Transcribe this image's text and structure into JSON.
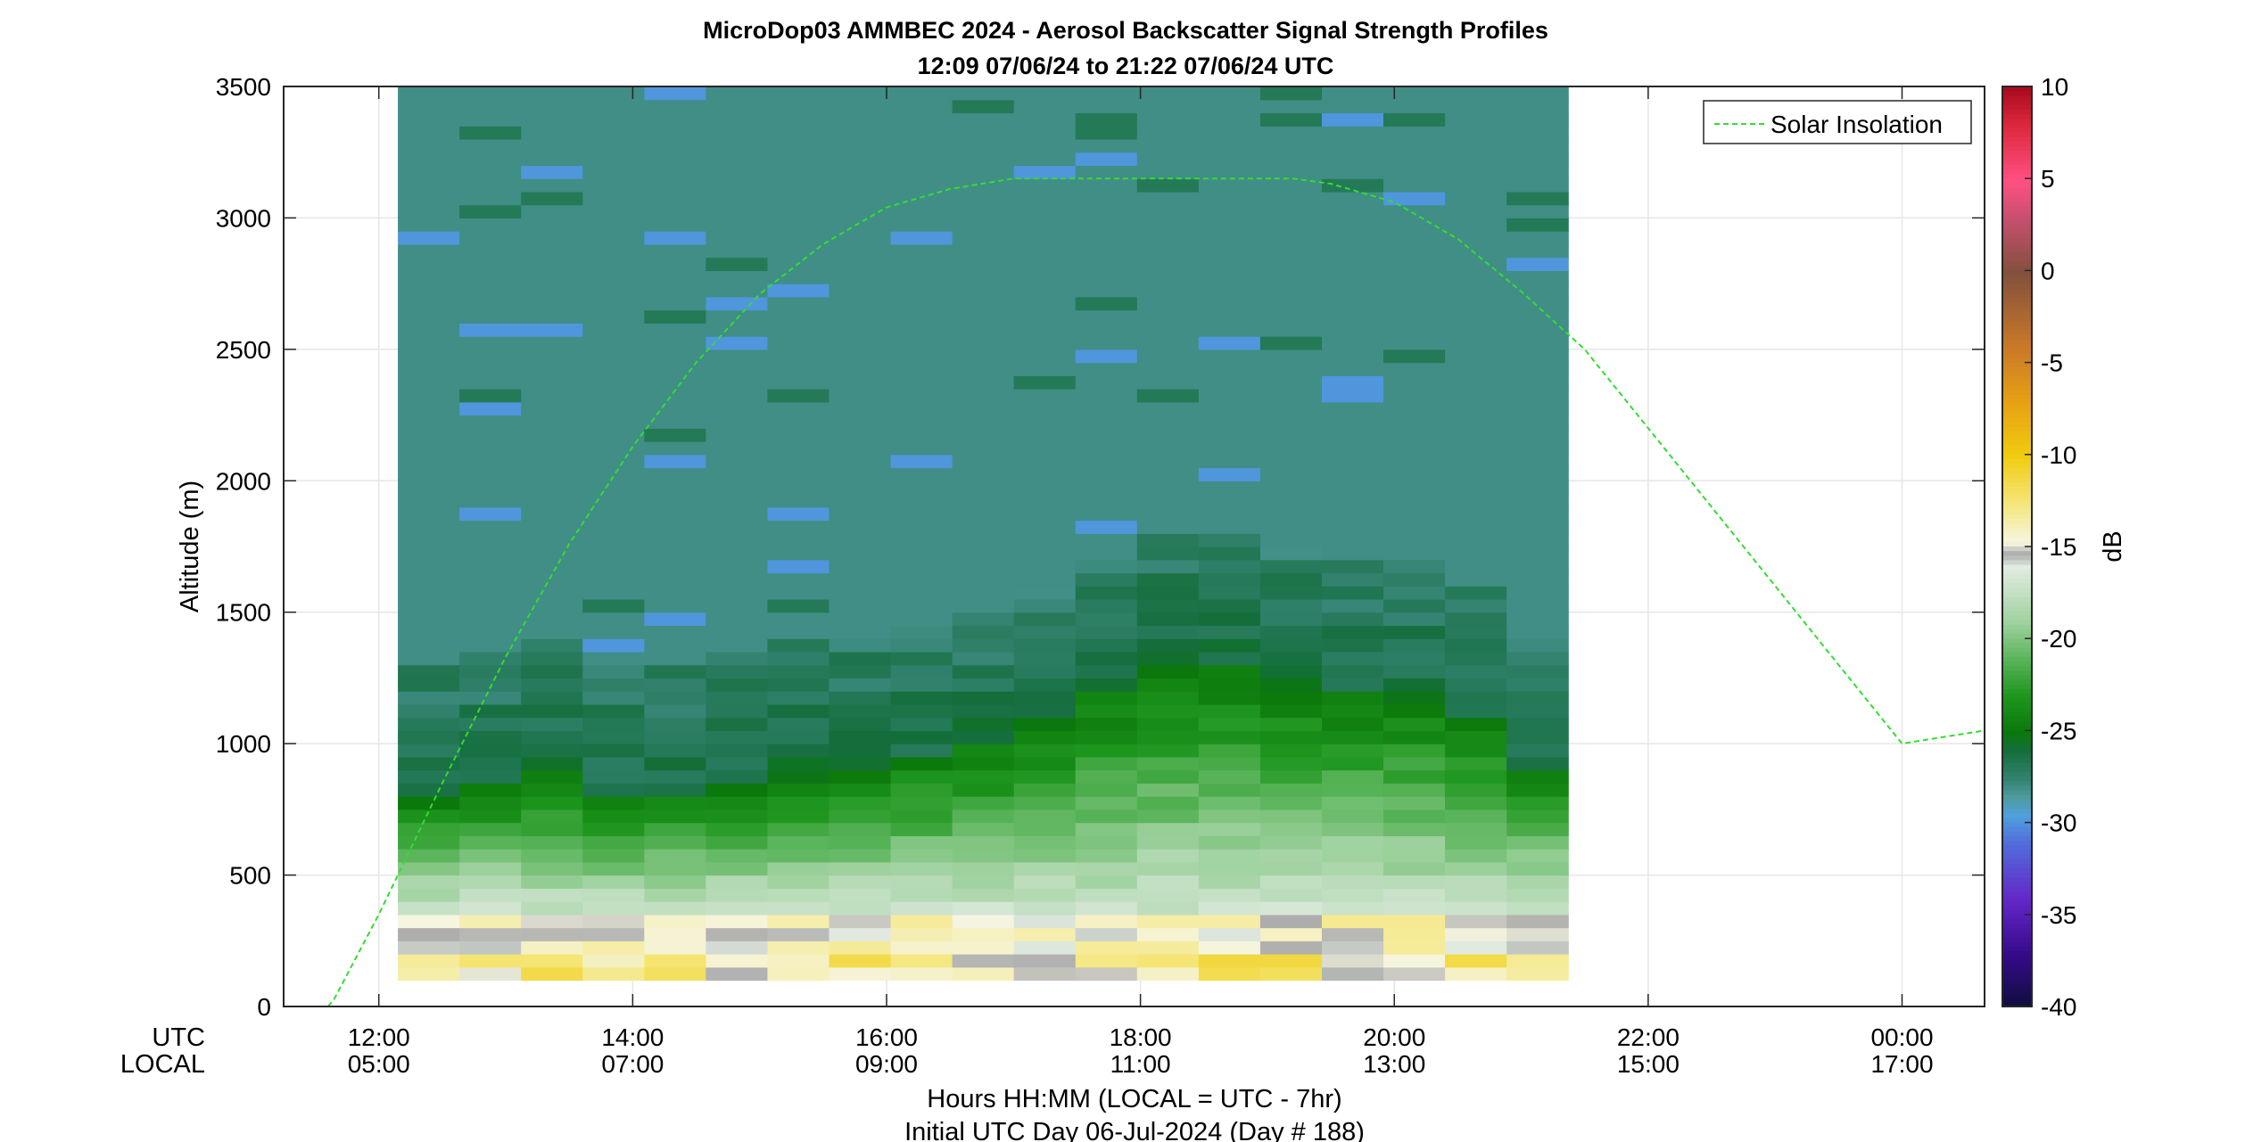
{
  "chart_data": {
    "type": "heatmap",
    "title": "MicroDop03 AMMBEC 2024 - Aerosol Backscatter Signal Strength Profiles",
    "subtitle": "12:09 07/06/24 to 21:22 07/06/24  UTC",
    "ylabel": "Altitude (m)",
    "xlabel": "Hours HH:MM  (LOCAL = UTC - 7hr)",
    "xlabel2": "Initial UTC Day 06-Jul-2024 (Day # 188)",
    "xrow_label_utc": "UTC",
    "xrow_label_local": "LOCAL",
    "colorbar_label": "dB",
    "ylim": [
      0,
      3500
    ],
    "xlim_hours": [
      11.25,
      24.65
    ],
    "yticks": [
      "0",
      "500",
      "1000",
      "1500",
      "2000",
      "2500",
      "3000",
      "3500"
    ],
    "xticks_utc": [
      "12:00",
      "14:00",
      "16:00",
      "18:00",
      "20:00",
      "22:00",
      "00:00"
    ],
    "xticks_local": [
      "05:00",
      "07:00",
      "09:00",
      "11:00",
      "13:00",
      "15:00",
      "17:00"
    ],
    "colorbar_ticks": [
      "10",
      "5",
      "0",
      "-5",
      "-10",
      "-15",
      "-20",
      "-25",
      "-30",
      "-35",
      "-40"
    ],
    "clim": [
      -40,
      10
    ],
    "grid": true,
    "legend": {
      "placement": "top-right",
      "entries": [
        "Solar Insolation"
      ]
    },
    "solar_series": {
      "name": "Solar Insolation",
      "color": "#33dd33",
      "note_units": "altitude-axis scaled",
      "x_hours": [
        11.25,
        11.6,
        11.65,
        12.0,
        12.5,
        13.0,
        13.5,
        14.0,
        14.5,
        15.0,
        15.5,
        16.0,
        16.5,
        17.0,
        17.5,
        18.0,
        18.5,
        19.0,
        19.2,
        19.5,
        20.0,
        20.5,
        21.0,
        21.5,
        22.0,
        22.5,
        23.0,
        23.5,
        24.0,
        24.65
      ],
      "values": [
        0,
        0,
        30,
        350,
        850,
        1330,
        1760,
        2130,
        2450,
        2710,
        2900,
        3040,
        3110,
        3150,
        3150,
        3150,
        3150,
        3150,
        3150,
        3130,
        3060,
        2920,
        2720,
        2500,
        2200,
        1900,
        1600,
        1300,
        1000,
        1050
      ]
    },
    "profile_summary": {
      "x_start_hours": 12.15,
      "x_end_hours": 21.37,
      "surface_layer_dB": -14,
      "mixed_layer_top_m": [
        800,
        850,
        900,
        800,
        800,
        850,
        900,
        900,
        950,
        1000,
        1100,
        1200,
        1300,
        1300,
        1250,
        1200,
        1200,
        1100,
        900
      ],
      "free_troposphere_dB": -28
    },
    "colors": {
      "free_troposphere": "#4e9a9c",
      "boundary_dark": "#0a7a0a",
      "surface_yellow": "#f0cc10",
      "grid": "#e6e6e6"
    }
  }
}
